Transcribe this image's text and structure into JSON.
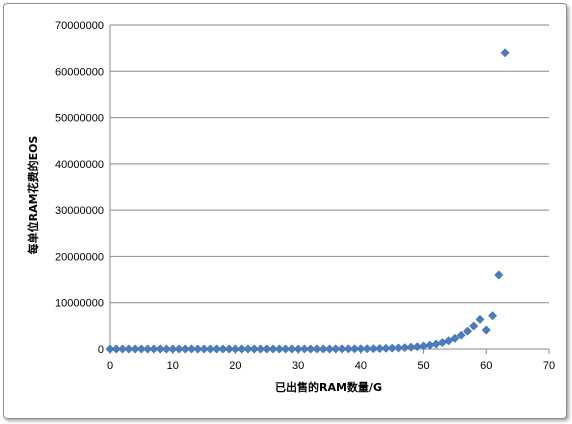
{
  "chart_data": {
    "type": "scatter",
    "title": "",
    "xlabel": "已出售的RAM数量/G",
    "ylabel": "每单位RAM花费的EOS",
    "xlim": [
      0,
      70
    ],
    "ylim": [
      0,
      70000000
    ],
    "x_ticks": [
      "0",
      "10",
      "20",
      "30",
      "40",
      "50",
      "60",
      "70"
    ],
    "y_ticks": [
      "0",
      "10000000",
      "20000000",
      "30000000",
      "40000000",
      "50000000",
      "60000000",
      "70000000"
    ],
    "grid": "horizontal",
    "legend": "none",
    "marker": "diamond",
    "color": "#4a7dbf",
    "x": [
      0,
      1,
      2,
      3,
      4,
      5,
      6,
      7,
      8,
      9,
      10,
      11,
      12,
      13,
      14,
      15,
      16,
      17,
      18,
      19,
      20,
      21,
      22,
      23,
      24,
      25,
      26,
      27,
      28,
      29,
      30,
      31,
      32,
      33,
      34,
      35,
      36,
      37,
      38,
      39,
      40,
      41,
      42,
      43,
      44,
      45,
      46,
      47,
      48,
      49,
      50,
      51,
      52,
      53,
      54,
      55,
      56,
      57,
      58,
      59,
      60,
      61,
      62,
      63
    ],
    "y": [
      1000,
      1000,
      1000,
      1000,
      1000,
      1000,
      1000,
      1000,
      1000,
      1000,
      1000,
      1000,
      1000,
      1000,
      1000,
      1000,
      1000,
      1000,
      1000,
      1000,
      1000,
      1000,
      1000,
      1000,
      2000,
      2000,
      2000,
      3000,
      3000,
      4000,
      5000,
      6000,
      7000,
      9000,
      12000,
      15000,
      19000,
      24000,
      31000,
      40000,
      51000,
      65000,
      84000,
      108000,
      140000,
      180000,
      232000,
      300000,
      390000,
      500000,
      640000,
      830000,
      1070000,
      1380000,
      1780000,
      2300000,
      2970000,
      3840000,
      4960000,
      6400000,
      4100000,
      7200000,
      16000000,
      64000000
    ]
  }
}
